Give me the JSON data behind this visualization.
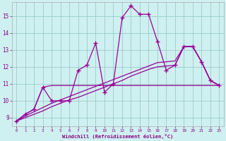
{
  "xlabel": "Windchill (Refroidissement éolien,°C)",
  "x_values": [
    0,
    1,
    2,
    3,
    4,
    5,
    6,
    7,
    8,
    9,
    10,
    11,
    12,
    13,
    14,
    15,
    16,
    17,
    18,
    19,
    20,
    21,
    22,
    23
  ],
  "line1_y": [
    8.8,
    9.2,
    9.5,
    10.8,
    10.0,
    10.0,
    10.0,
    11.8,
    12.1,
    13.4,
    10.5,
    11.0,
    14.9,
    15.6,
    15.1,
    15.1,
    13.5,
    11.8,
    12.1,
    13.2,
    13.2,
    12.3,
    11.2,
    10.9
  ],
  "line2_y": [
    8.8,
    9.2,
    9.5,
    10.8,
    10.9,
    10.9,
    10.9,
    10.9,
    10.9,
    10.9,
    10.9,
    10.9,
    10.9,
    10.9,
    10.9,
    10.9,
    10.9,
    10.9,
    10.9,
    10.9,
    10.9,
    10.9,
    10.9,
    10.9
  ],
  "line3_y": [
    8.8,
    9.1,
    9.35,
    9.6,
    9.85,
    10.05,
    10.25,
    10.45,
    10.65,
    10.85,
    11.05,
    11.25,
    11.45,
    11.65,
    11.85,
    12.05,
    12.25,
    12.3,
    12.35,
    13.2,
    13.2,
    12.3,
    11.2,
    10.9
  ],
  "line4_y": [
    8.8,
    9.0,
    9.2,
    9.4,
    9.65,
    9.85,
    10.05,
    10.2,
    10.4,
    10.6,
    10.8,
    11.0,
    11.2,
    11.45,
    11.65,
    11.85,
    12.0,
    12.05,
    12.1,
    13.2,
    13.2,
    12.3,
    11.2,
    10.9
  ],
  "line_color": "#990099",
  "bg_color": "#cff0f0",
  "grid_color": "#99cccc",
  "axis_color": "#880088",
  "tick_color": "#880088",
  "ylim": [
    8.5,
    15.8
  ],
  "xlim": [
    -0.5,
    23.5
  ],
  "yticks": [
    9,
    10,
    11,
    12,
    13,
    14,
    15
  ],
  "xticks": [
    0,
    1,
    2,
    3,
    4,
    5,
    6,
    7,
    8,
    9,
    10,
    11,
    12,
    13,
    14,
    15,
    16,
    17,
    18,
    19,
    20,
    21,
    22,
    23
  ]
}
